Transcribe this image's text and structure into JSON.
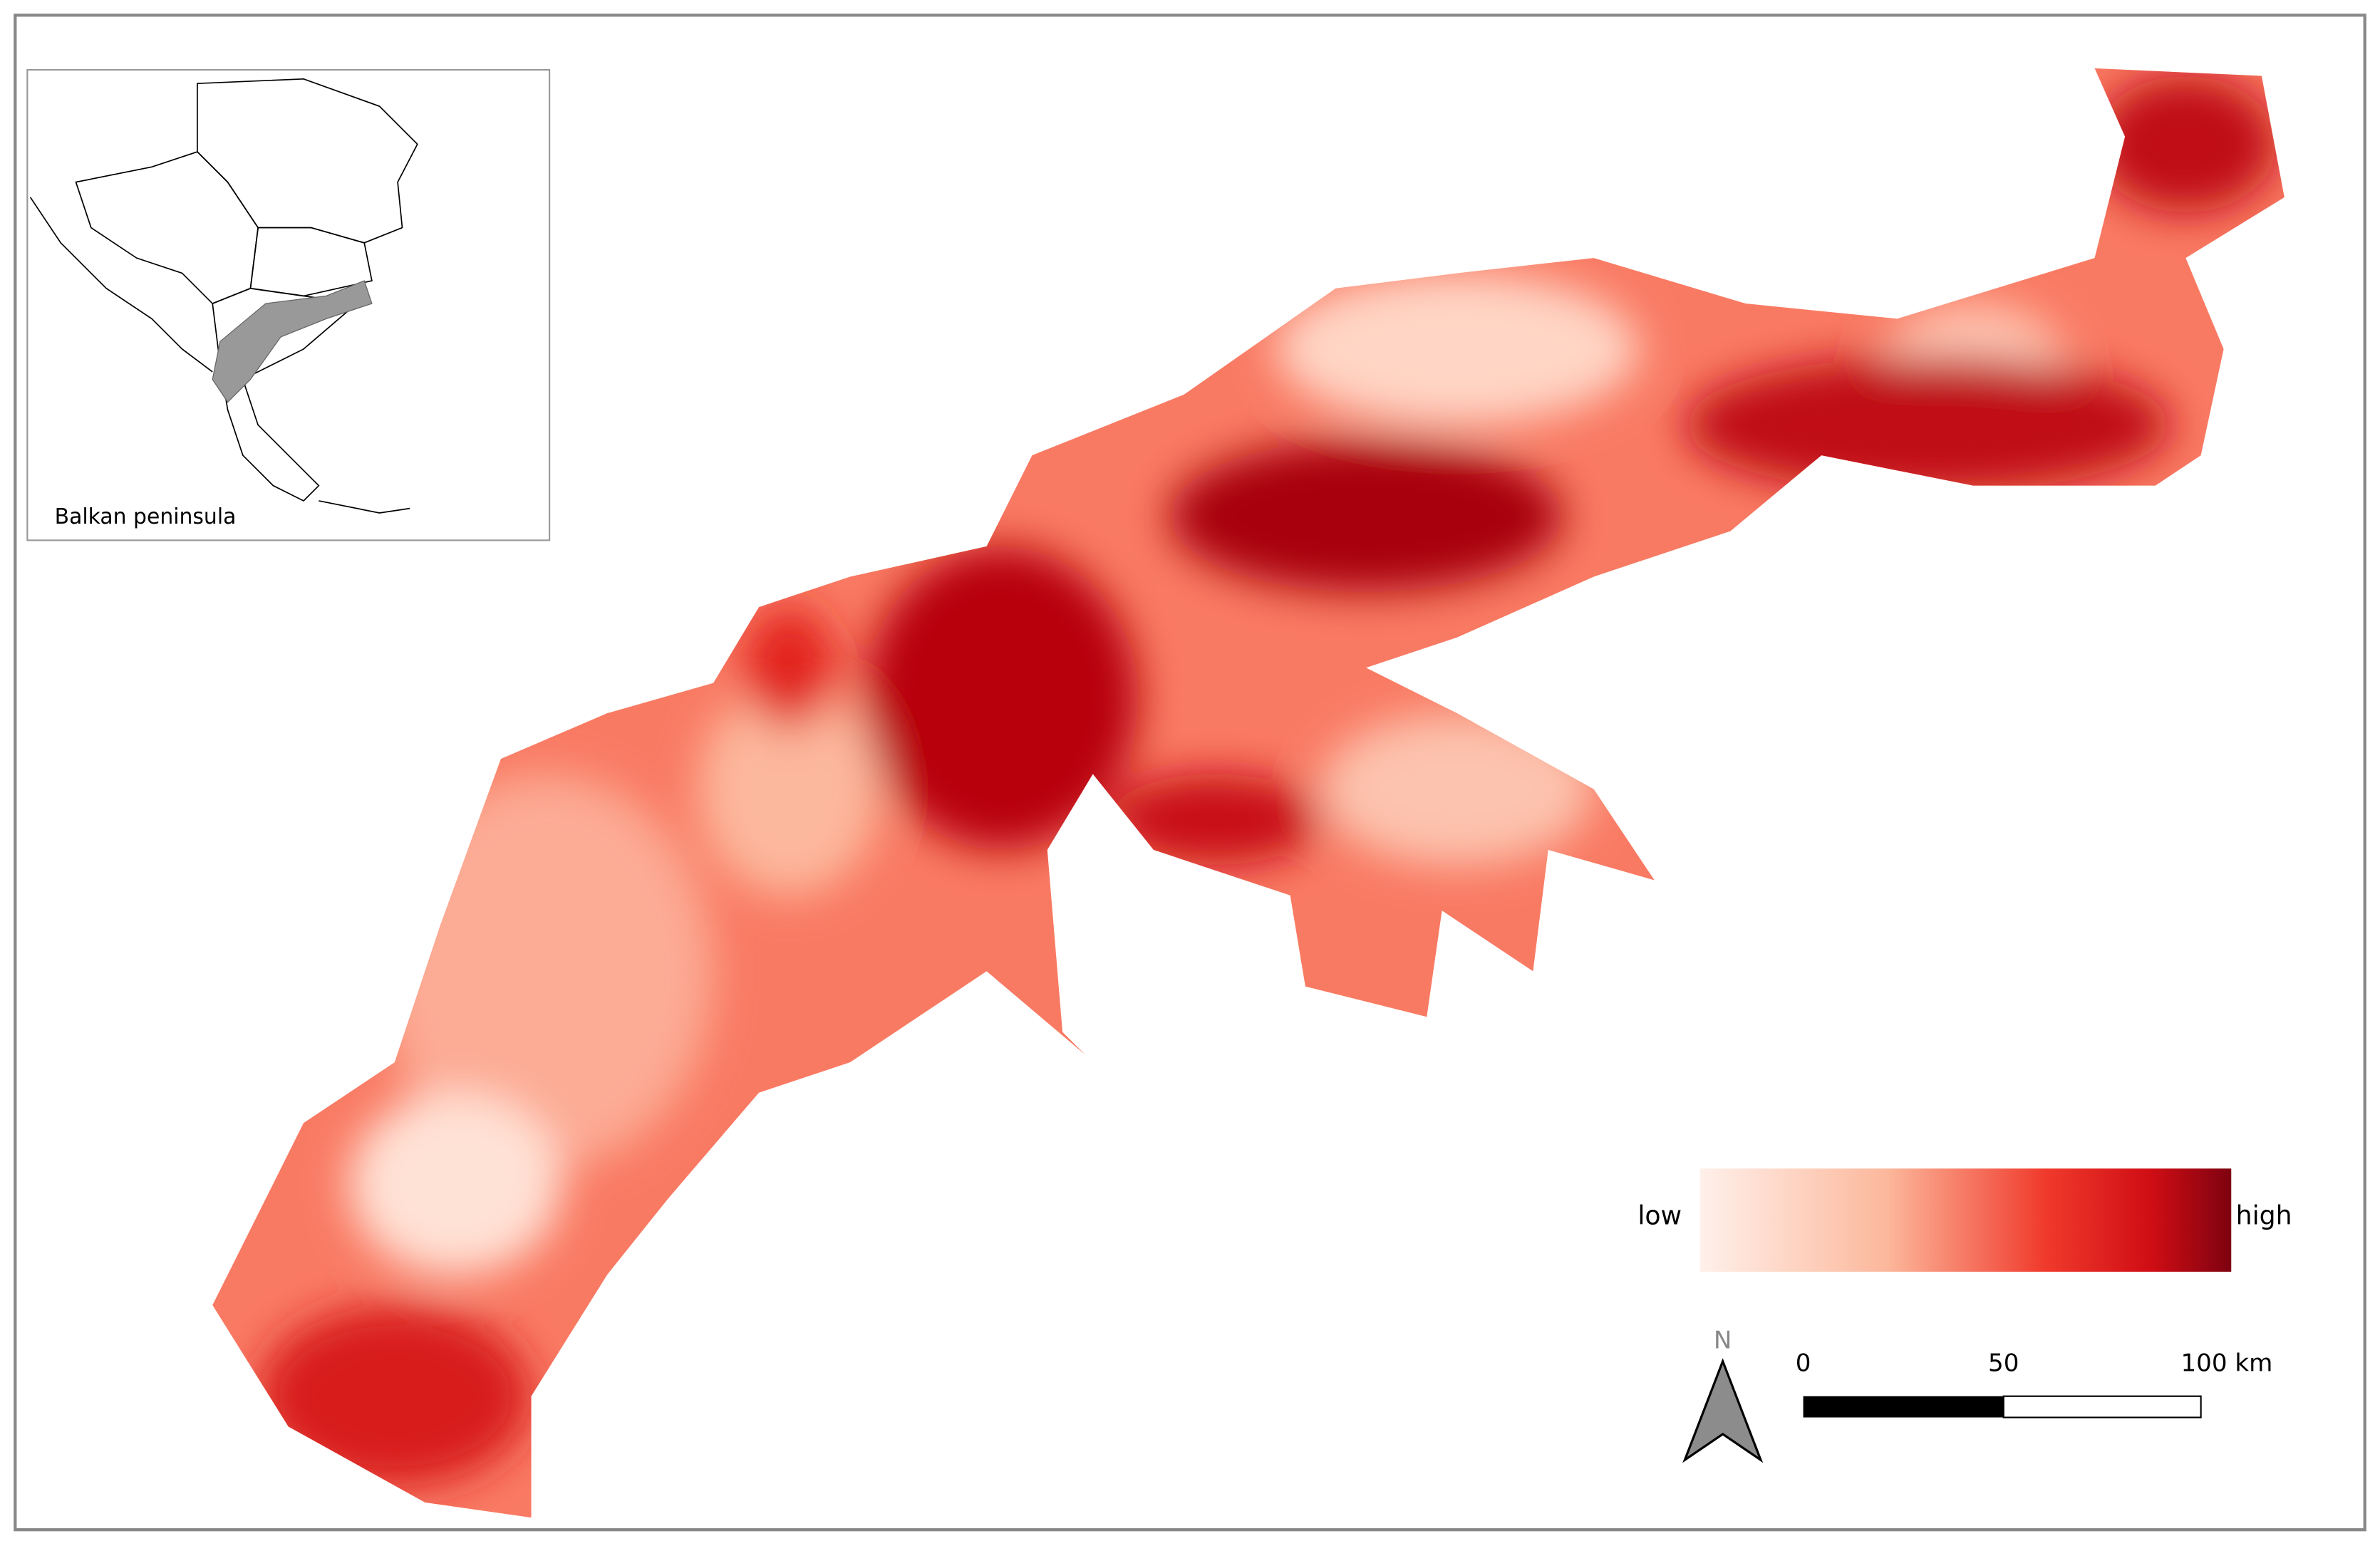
{
  "inset": {
    "label": "Balkan peninsula"
  },
  "legend": {
    "low": "low",
    "high": "high"
  },
  "north_arrow": {
    "label": "N"
  },
  "scale_bar": {
    "labels": [
      "0",
      "50",
      "100 km"
    ]
  }
}
